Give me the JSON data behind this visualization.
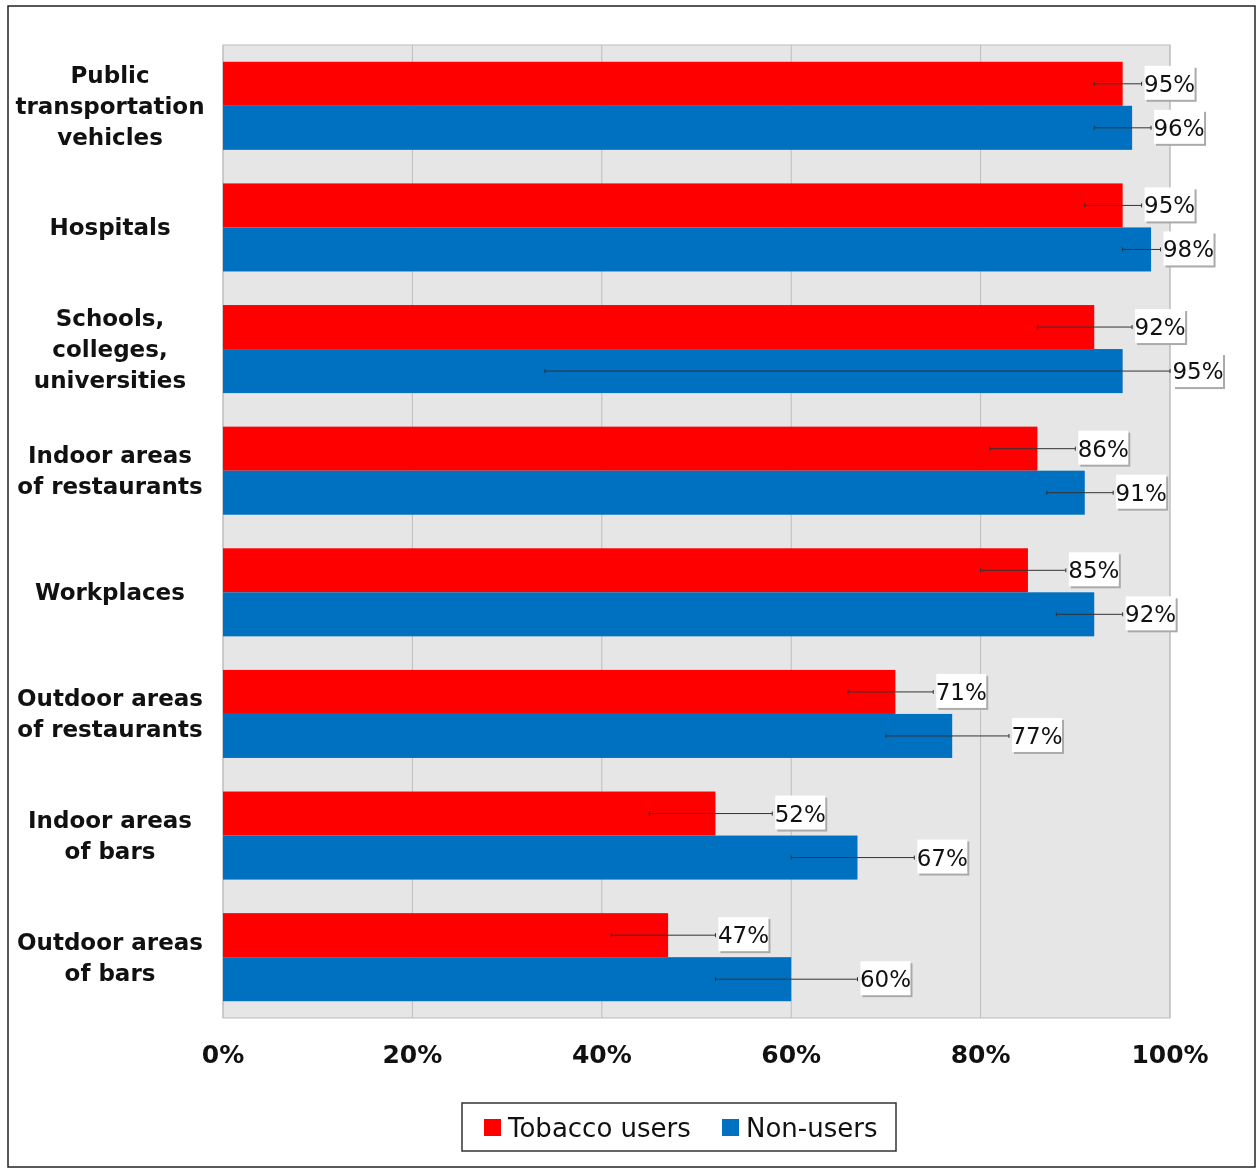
{
  "chart_data": {
    "type": "bar",
    "orientation": "horizontal",
    "categories": [
      "Public transportation vehicles",
      "Hospitals",
      "Schools, colleges, universities",
      "Indoor areas of restaurants",
      "Workplaces",
      "Outdoor areas of restaurants",
      "Indoor areas of bars",
      "Outdoor areas of bars"
    ],
    "series": [
      {
        "name": "Tobacco users",
        "color": "#ff0000",
        "values": [
          95,
          95,
          92,
          86,
          85,
          71,
          52,
          47
        ],
        "value_labels": [
          "95%",
          "95%",
          "92%",
          "86%",
          "85%",
          "71%",
          "52%",
          "47%"
        ],
        "errors": [
          [
            92,
            97
          ],
          [
            91,
            97
          ],
          [
            86,
            96
          ],
          [
            81,
            90
          ],
          [
            80,
            89
          ],
          [
            66,
            75
          ],
          [
            45,
            58
          ],
          [
            41,
            52
          ]
        ]
      },
      {
        "name": "Non-users",
        "color": "#0070c0",
        "values": [
          96,
          98,
          95,
          91,
          92,
          77,
          67,
          60
        ],
        "value_labels": [
          "96%",
          "98%",
          "95%",
          "91%",
          "92%",
          "77%",
          "67%",
          "60%"
        ],
        "errors": [
          [
            92,
            98
          ],
          [
            95,
            99
          ],
          [
            34,
            100
          ],
          [
            87,
            94
          ],
          [
            88,
            95
          ],
          [
            70,
            83
          ],
          [
            60,
            73
          ],
          [
            52,
            67
          ]
        ]
      }
    ],
    "xlim": [
      0,
      100
    ],
    "xticks": [
      {
        "value": 0,
        "label": "0%"
      },
      {
        "value": 20,
        "label": "20%"
      },
      {
        "value": 40,
        "label": "40%"
      },
      {
        "value": 60,
        "label": "60%"
      },
      {
        "value": 80,
        "label": "80%"
      },
      {
        "value": 100,
        "label": "100%"
      }
    ],
    "grid": "x",
    "legend": "bottom"
  }
}
